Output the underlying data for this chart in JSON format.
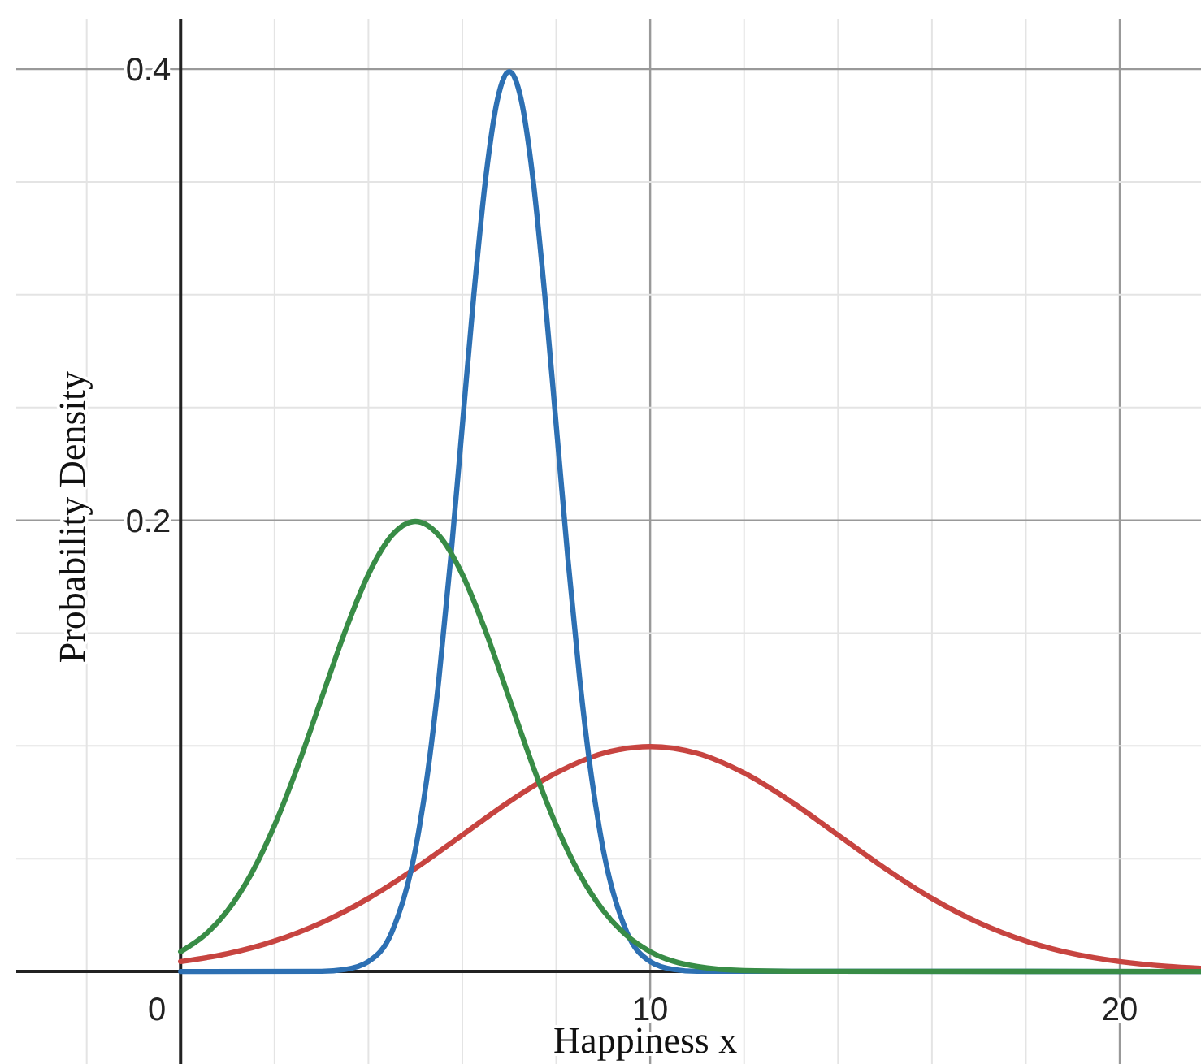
{
  "chart_data": {
    "type": "line",
    "xlabel": "Happiness x",
    "ylabel": "Probability Density",
    "xlim": [
      -3.5,
      21.73
    ],
    "ylim": [
      -0.041,
      0.422
    ],
    "xticks": [
      {
        "value": -2,
        "label": null
      },
      0,
      {
        "value": 2,
        "label": null
      },
      {
        "value": 4,
        "label": null
      },
      {
        "value": 6,
        "label": null
      },
      {
        "value": 8,
        "label": null
      },
      10,
      {
        "value": 12,
        "label": null
      },
      {
        "value": 14,
        "label": null
      },
      {
        "value": 16,
        "label": null
      },
      {
        "value": 18,
        "label": null
      },
      20
    ],
    "yticks": [
      {
        "value": 0,
        "label": null
      },
      {
        "value": 0.05,
        "label": null
      },
      {
        "value": 0.1,
        "label": null
      },
      {
        "value": 0.15,
        "label": null
      },
      0.2,
      {
        "value": 0.25,
        "label": null
      },
      {
        "value": 0.3,
        "label": null
      },
      {
        "value": 0.35,
        "label": null
      },
      0.4
    ],
    "grid": true,
    "marker": "none",
    "line_style": "solid",
    "series": [
      {
        "color": "#c74440",
        "x": [
          0,
          1,
          2,
          3,
          4,
          5,
          6,
          7,
          8,
          9,
          10,
          11,
          12,
          13,
          14,
          15,
          16,
          17,
          18,
          19,
          20,
          21,
          21.73
        ],
        "values": [
          0.0044,
          0.0079,
          0.0135,
          0.0216,
          0.0324,
          0.0457,
          0.0605,
          0.0753,
          0.088,
          0.0967,
          0.0997,
          0.0967,
          0.088,
          0.0753,
          0.0605,
          0.0457,
          0.0324,
          0.0216,
          0.0135,
          0.0079,
          0.0044,
          0.0023,
          0.0014
        ]
      },
      {
        "color": "#2d70b3",
        "x": [
          0,
          3,
          3.5,
          4,
          4.5,
          5,
          5.25,
          5.5,
          5.75,
          6,
          6.25,
          6.5,
          6.75,
          7,
          7.25,
          7.5,
          7.75,
          8,
          8.25,
          8.5,
          8.75,
          9,
          9.5,
          10,
          10.5,
          11,
          21.73
        ],
        "values": [
          0,
          0.0001,
          0.0009,
          0.0044,
          0.0175,
          0.054,
          0.0863,
          0.1295,
          0.1826,
          0.242,
          0.3011,
          0.3521,
          0.3867,
          0.3989,
          0.3867,
          0.3521,
          0.3011,
          0.242,
          0.1826,
          0.1295,
          0.0863,
          0.054,
          0.0175,
          0.0044,
          0.0009,
          0.0001,
          0
        ]
      },
      {
        "color": "#388c46",
        "x": [
          0,
          0.5,
          1,
          1.5,
          2,
          2.5,
          3,
          3.5,
          4,
          4.5,
          5,
          5.5,
          6,
          6.5,
          7,
          7.5,
          8,
          8.5,
          9,
          9.5,
          10,
          11,
          12,
          13,
          21.73
        ],
        "values": [
          0.0088,
          0.0159,
          0.027,
          0.0431,
          0.0648,
          0.0913,
          0.121,
          0.1506,
          0.176,
          0.1933,
          0.1995,
          0.1933,
          0.176,
          0.1506,
          0.121,
          0.0913,
          0.0648,
          0.0431,
          0.027,
          0.0159,
          0.0088,
          0.0022,
          0.0004,
          0.0001,
          0
        ]
      }
    ]
  }
}
